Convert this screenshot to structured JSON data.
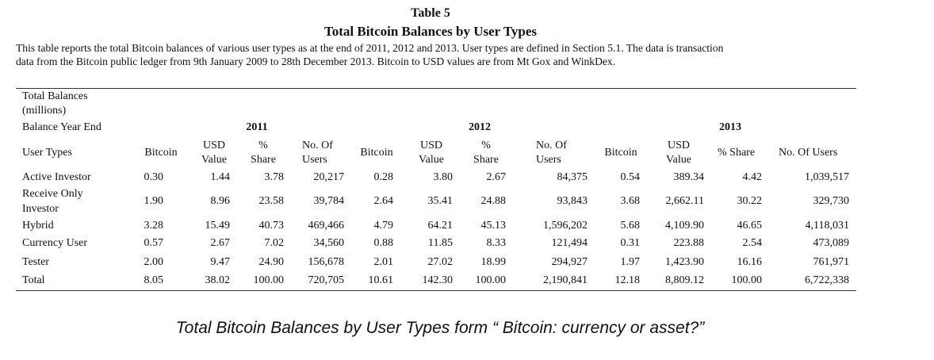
{
  "table": {
    "label": "Table 5",
    "title": "Total Bitcoin Balances by User Types",
    "description_line1": "This table reports the total Bitcoin balances of various user types as at the end of 2011, 2012 and 2013. User types are defined in Section 5.1. The data is transaction",
    "description_line2": "data from the Bitcoin public ledger from 9th January 2009 to 28th December 2013. Bitcoin to USD values are from Mt Gox and WinkDex.",
    "header": {
      "total_balances_l1": "Total Balances",
      "total_balances_l2": "(millions)",
      "balance_year_end": "Balance Year End",
      "user_types": "User Types",
      "years": [
        "2011",
        "2012",
        "2013"
      ],
      "bitcoin": "Bitcoin",
      "usd_l1": "USD",
      "usd_l2": "Value",
      "pct_l1": "%",
      "pct_l2": "Share",
      "users_l1": "No. Of",
      "users_l2": "Users",
      "pct_share_2013": "% Share",
      "users_2013": "No. Of Users"
    },
    "rows": [
      {
        "label": "Active Investor",
        "values": [
          "0.30",
          "1.44",
          "3.78",
          "20,217",
          "0.28",
          "3.80",
          "2.67",
          "84,375",
          "0.54",
          "389.34",
          "4.42",
          "1,039,517"
        ]
      },
      {
        "label_l1": "Receive Only",
        "label_l2": "Investor",
        "values": [
          "1.90",
          "8.96",
          "23.58",
          "39,784",
          "2.64",
          "35.41",
          "24.88",
          "93,843",
          "3.68",
          "2,662.11",
          "30.22",
          "329,730"
        ]
      },
      {
        "label": "Hybrid",
        "values": [
          "3.28",
          "15.49",
          "40.73",
          "469,466",
          "4.79",
          "64.21",
          "45.13",
          "1,596,202",
          "5.68",
          "4,109.90",
          "46.65",
          "4,118,031"
        ]
      },
      {
        "label": "Currency User",
        "values": [
          "0.57",
          "2.67",
          "7.02",
          "34,560",
          "0.88",
          "11.85",
          "8.33",
          "121,494",
          "0.31",
          "223.88",
          "2.54",
          "473,089"
        ]
      },
      {
        "label": "Tester",
        "values": [
          "2.00",
          "9.47",
          "24.90",
          "156,678",
          "2.01",
          "27.02",
          "18.99",
          "294,927",
          "1.97",
          "1,423.90",
          "16.16",
          "761,971"
        ]
      },
      {
        "label": "Total",
        "values": [
          "8.05",
          "38.02",
          "100.00",
          "720,705",
          "10.61",
          "142.30",
          "100.00",
          "2,190,841",
          "12.18",
          "8,809.12",
          "100.00",
          "6,722,338"
        ]
      }
    ]
  },
  "caption": "Total Bitcoin Balances by User Types form “ Bitcoin: currency or asset?”"
}
